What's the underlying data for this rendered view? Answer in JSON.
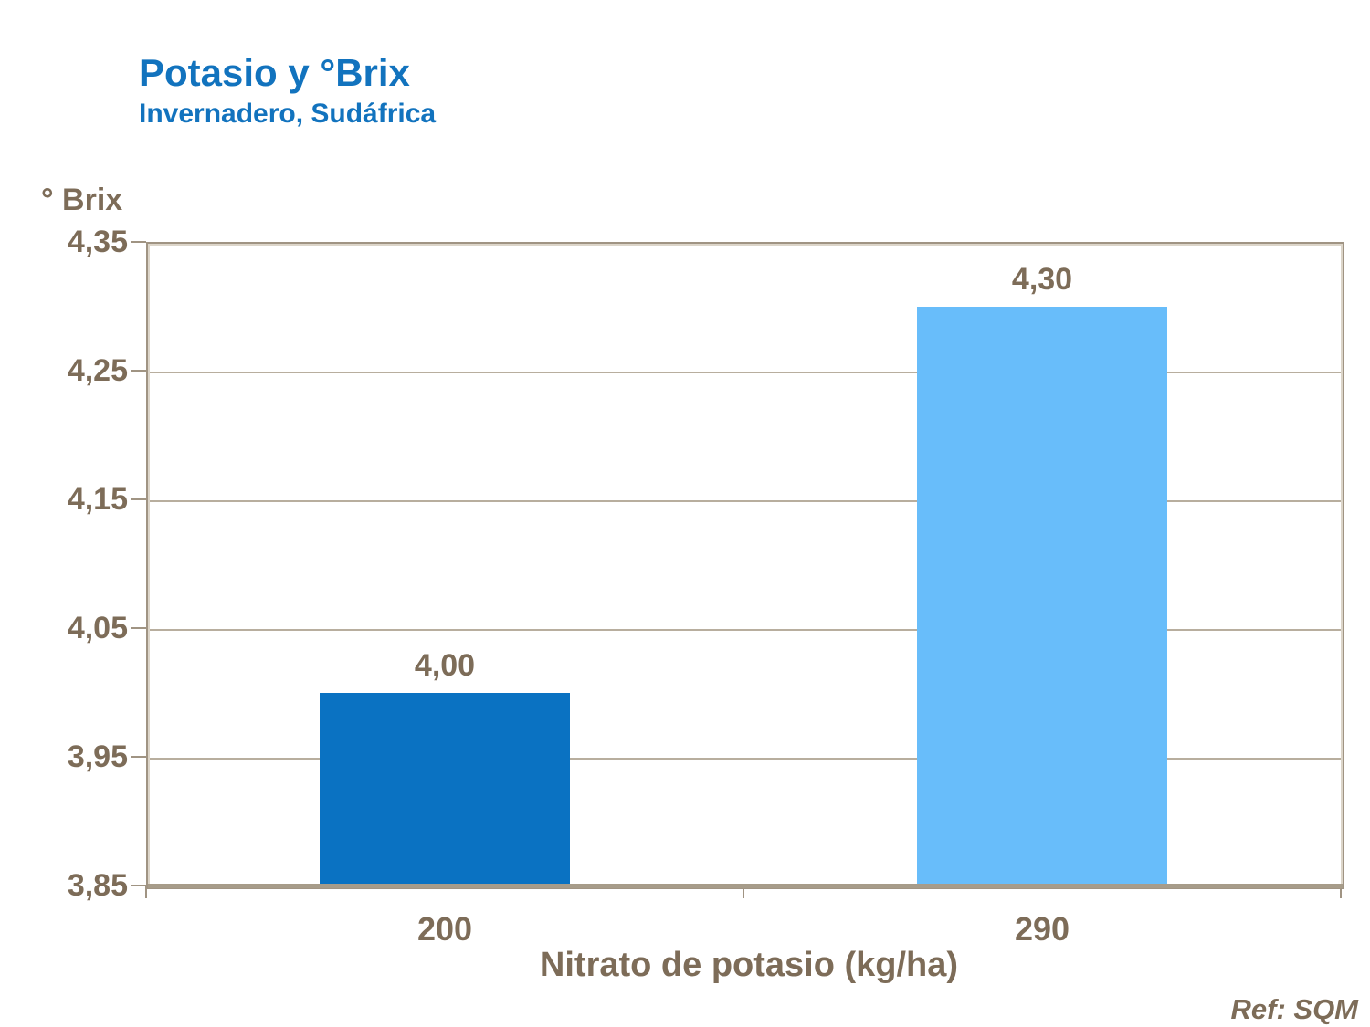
{
  "chart_data": {
    "type": "bar",
    "title": "Potasio y °Brix",
    "subtitle": "Invernadero, Sudáfrica",
    "ylabel": "° Brix",
    "xlabel": "Nitrato de potasio (kg/ha)",
    "categories": [
      "200",
      "290"
    ],
    "values": [
      4.0,
      4.3
    ],
    "value_labels": [
      "4,00",
      "4,30"
    ],
    "bar_colors": [
      "#0A72C2",
      "#68BDFA"
    ],
    "y_ticks": [
      "4,35",
      "4,25",
      "4,15",
      "4,05",
      "3,95",
      "3,85"
    ],
    "ylim": [
      3.85,
      4.35
    ],
    "grid": true,
    "legend": "none",
    "title_color": "#1273BE",
    "text_color": "#7D6C58",
    "axis_color": "#A09483",
    "gridline_color": "#B8AE9E",
    "ref": "Ref: SQM"
  }
}
